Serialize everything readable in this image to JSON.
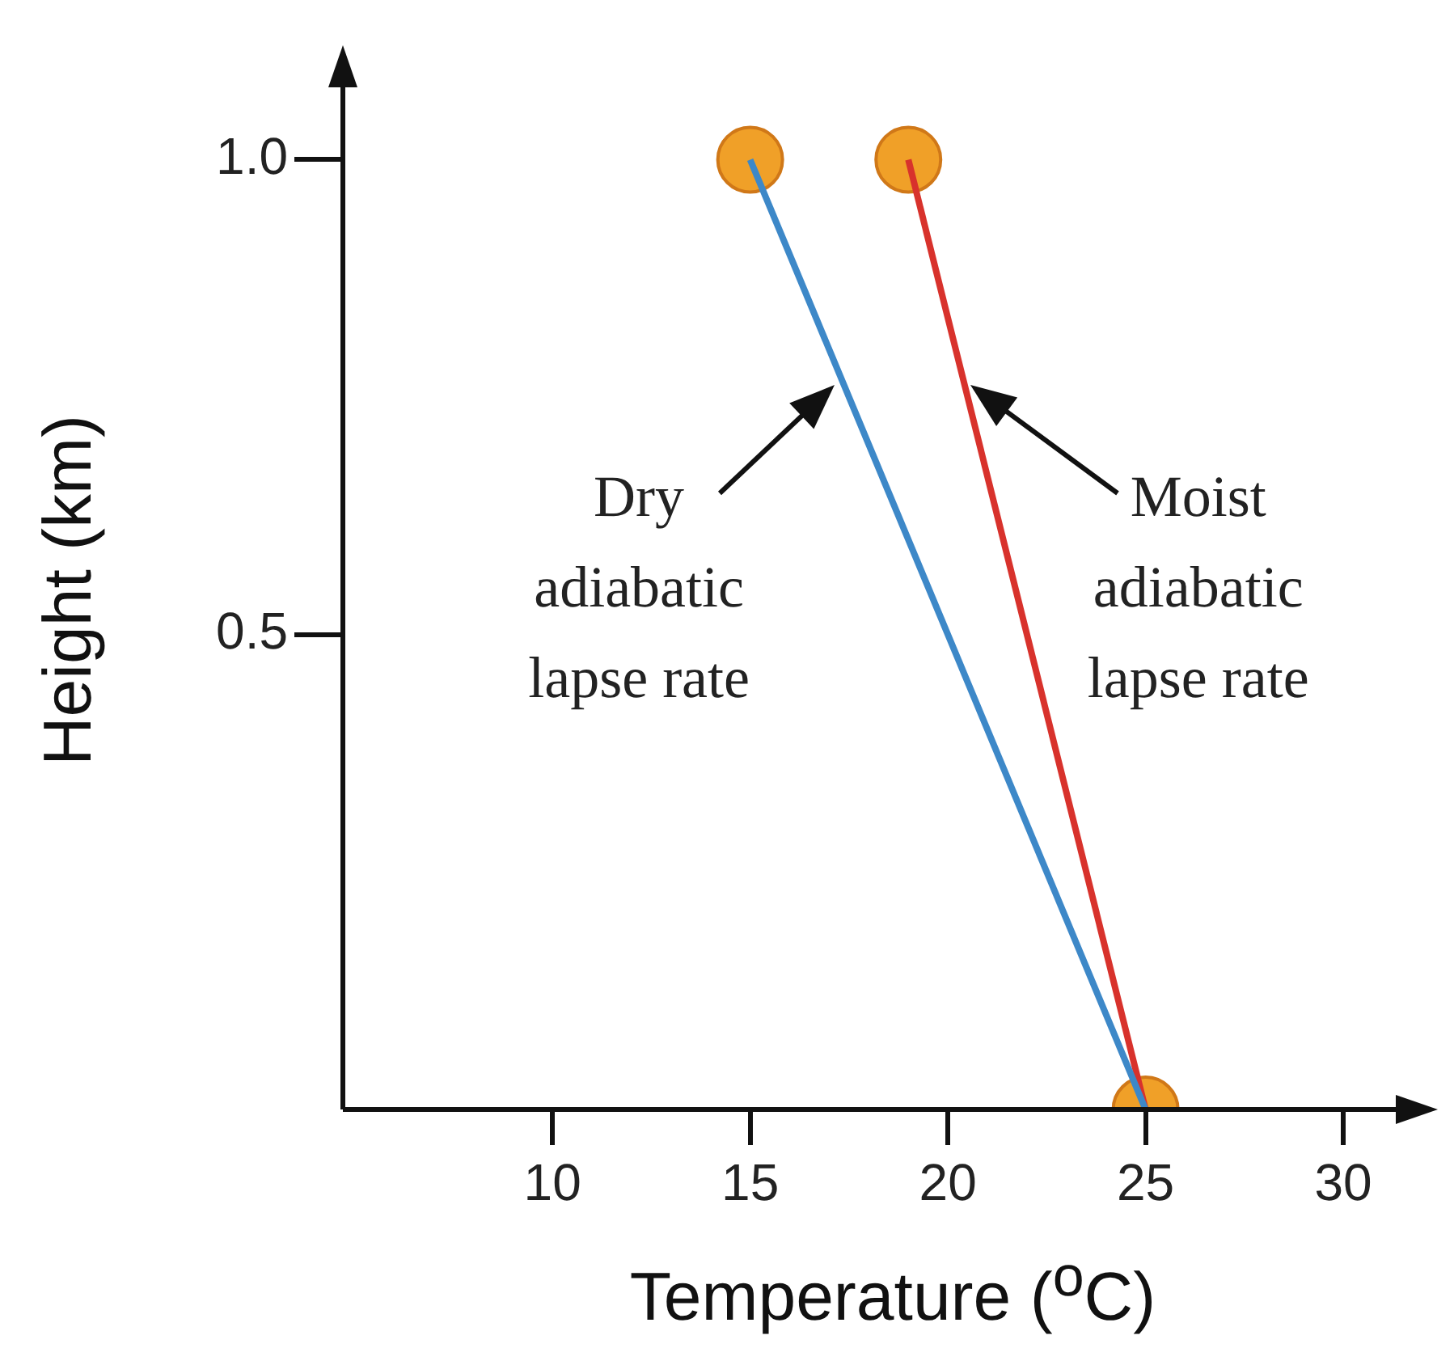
{
  "chart_data": {
    "type": "line",
    "xlabel": "Temperature ($^{o}$C)",
    "ylabel": "Height (km)",
    "xlim": [
      4.7,
      31.9
    ],
    "ylim": [
      0,
      1.1
    ],
    "xticks": [
      10,
      15,
      20,
      25,
      30
    ],
    "yticks": [
      0.5,
      {
        "value": 1,
        "label": "1.0"
      }
    ],
    "grid": false,
    "legend": false,
    "series": [
      {
        "color": "#3d88c8",
        "x": [
          25,
          15
        ],
        "values": [
          0,
          1
        ],
        "marker": "none"
      },
      {
        "color": "#d8322c",
        "x": [
          25,
          19
        ],
        "values": [
          0,
          1
        ],
        "marker": "none"
      },
      {
        "type": "scatter",
        "color": "#f0a028",
        "x": [
          15,
          19,
          25
        ],
        "values": [
          1,
          1,
          0
        ],
        "marker": "circle"
      }
    ],
    "annotations": [
      {
        "text": "Dry adiabatic lapse rate",
        "x": 17.3,
        "y": 0.77
      },
      {
        "text": "Moist adiabatic lapse rate",
        "x": 20.4,
        "y": 0.77
      }
    ]
  }
}
